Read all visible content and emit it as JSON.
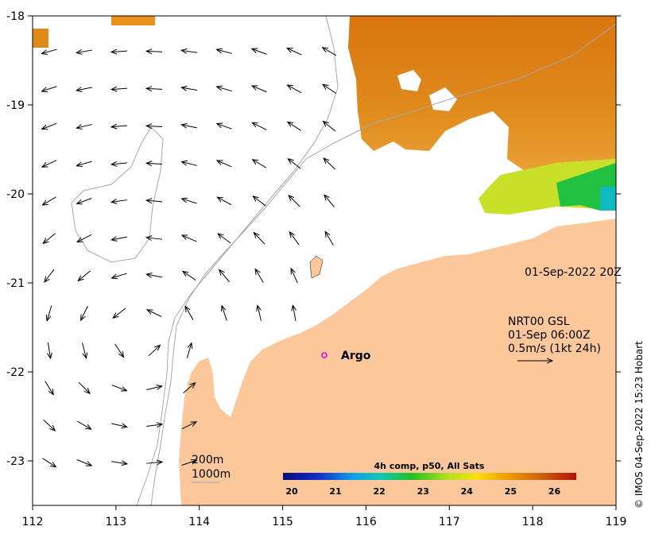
{
  "chart_data": {
    "type": "map",
    "x_ticks": [
      112,
      113,
      114,
      115,
      116,
      117,
      118,
      119
    ],
    "y_ticks": [
      -18,
      -19,
      -20,
      -21,
      -22,
      -23
    ],
    "xlim": [
      112,
      119
    ],
    "ylim": [
      -23.5,
      -18
    ],
    "timestamp": "01-Sep-2022 20Z",
    "current_legend": {
      "line1": "NRT00 GSL",
      "line2": "01-Sep 06:00Z",
      "line3": "0.5m/s (1kt 24h)"
    },
    "bathymetry_legend": [
      "200m",
      "1000m"
    ],
    "colorbar": {
      "title": "4h comp, p50, All Sats",
      "ticks": [
        20,
        21,
        22,
        23,
        24,
        25,
        26
      ],
      "range": [
        19.8,
        26.5
      ]
    },
    "markers": [
      {
        "label": "Argo",
        "lon": 115.45,
        "lat": -21.83
      }
    ],
    "colors": {
      "land": "#fcc89b",
      "marker": "#e000e0",
      "bathy": "#a8a8a8"
    },
    "credit": "© IMOS 04-Sep-2022 15:23 Hobart"
  }
}
